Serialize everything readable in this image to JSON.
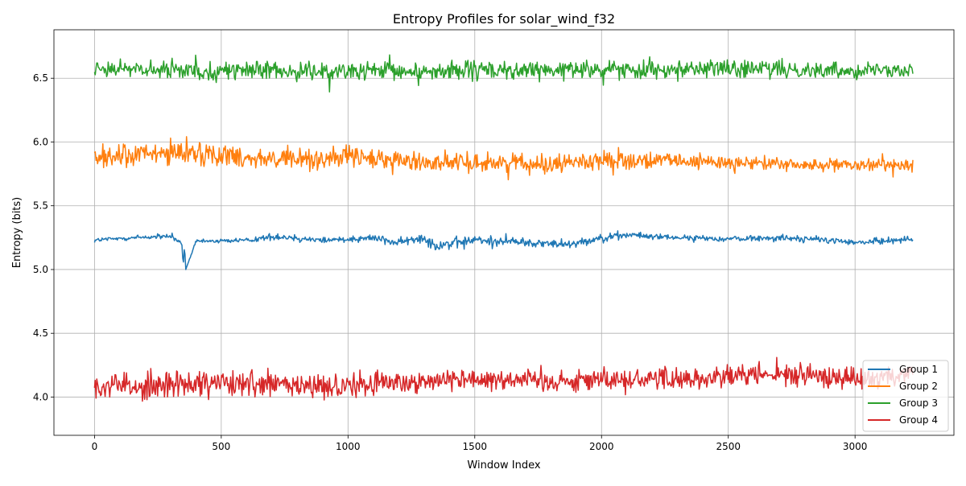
{
  "chart_data": {
    "type": "line",
    "title": "Entropy Profiles for solar_wind_f32",
    "xlabel": "Window Index",
    "ylabel": "Entropy (bits)",
    "xlim": [
      -160,
      3390
    ],
    "ylim": [
      3.7,
      6.88
    ],
    "xticks": [
      0,
      500,
      1000,
      1500,
      2000,
      2500,
      3000
    ],
    "yticks": [
      4.0,
      4.5,
      5.0,
      5.5,
      6.0,
      6.5
    ],
    "xtick_labels": [
      "0",
      "500",
      "1000",
      "1500",
      "2000",
      "2500",
      "3000"
    ],
    "ytick_labels": [
      "4.0",
      "4.5",
      "5.0",
      "5.5",
      "6.0",
      "6.5"
    ],
    "grid": true,
    "legend_position": "lower-right",
    "x_range": [
      0,
      3230
    ],
    "series": [
      {
        "name": "Group 1",
        "color": "#1f77b4",
        "x": [
          0,
          150,
          300,
          345,
          350,
          355,
          360,
          400,
          600,
          720,
          900,
          1100,
          1200,
          1300,
          1335,
          1400,
          1500,
          1650,
          1800,
          1900,
          2000,
          2100,
          2300,
          2500,
          2700,
          2900,
          3000,
          3230
        ],
        "mean": [
          5.23,
          5.25,
          5.26,
          5.2,
          5.02,
          5.2,
          5.0,
          5.22,
          5.23,
          5.26,
          5.23,
          5.25,
          5.21,
          5.25,
          5.2,
          5.2,
          5.23,
          5.22,
          5.2,
          5.21,
          5.25,
          5.27,
          5.25,
          5.24,
          5.25,
          5.23,
          5.21,
          5.24
        ],
        "range": [
          0.03,
          0.03,
          0.03,
          0.03,
          0.0,
          0.03,
          0.0,
          0.02,
          0.03,
          0.04,
          0.04,
          0.04,
          0.05,
          0.06,
          0.08,
          0.07,
          0.06,
          0.05,
          0.05,
          0.05,
          0.04,
          0.04,
          0.03,
          0.03,
          0.04,
          0.04,
          0.03,
          0.04
        ]
      },
      {
        "name": "Group 2",
        "color": "#ff7f0e",
        "x": [
          0,
          200,
          400,
          600,
          800,
          1000,
          1200,
          1400,
          1600,
          1800,
          2000,
          2200,
          2500,
          2800,
          3000,
          3230
        ],
        "mean": [
          5.88,
          5.9,
          5.92,
          5.88,
          5.86,
          5.88,
          5.85,
          5.84,
          5.84,
          5.83,
          5.86,
          5.85,
          5.84,
          5.82,
          5.81,
          5.83
        ],
        "range": [
          0.13,
          0.14,
          0.14,
          0.12,
          0.12,
          0.13,
          0.12,
          0.11,
          0.11,
          0.1,
          0.1,
          0.09,
          0.09,
          0.07,
          0.07,
          0.08
        ]
      },
      {
        "name": "Group 3",
        "color": "#2ca02c",
        "x": [
          0,
          300,
          600,
          900,
          1200,
          1500,
          1800,
          2100,
          2400,
          2700,
          3000,
          3230
        ],
        "mean": [
          6.58,
          6.56,
          6.56,
          6.55,
          6.55,
          6.56,
          6.56,
          6.57,
          6.58,
          6.57,
          6.56,
          6.58
        ],
        "range": [
          0.09,
          0.1,
          0.1,
          0.1,
          0.11,
          0.11,
          0.1,
          0.1,
          0.1,
          0.1,
          0.09,
          0.09
        ]
      },
      {
        "name": "Group 4",
        "color": "#d62728",
        "x": [
          0,
          300,
          600,
          900,
          1200,
          1500,
          1800,
          2100,
          2400,
          2700,
          3000,
          3230
        ],
        "mean": [
          4.08,
          4.1,
          4.1,
          4.08,
          4.12,
          4.15,
          4.13,
          4.14,
          4.15,
          4.18,
          4.15,
          4.17
        ],
        "range": [
          0.15,
          0.16,
          0.15,
          0.16,
          0.14,
          0.13,
          0.13,
          0.13,
          0.14,
          0.13,
          0.12,
          0.12
        ]
      }
    ]
  }
}
